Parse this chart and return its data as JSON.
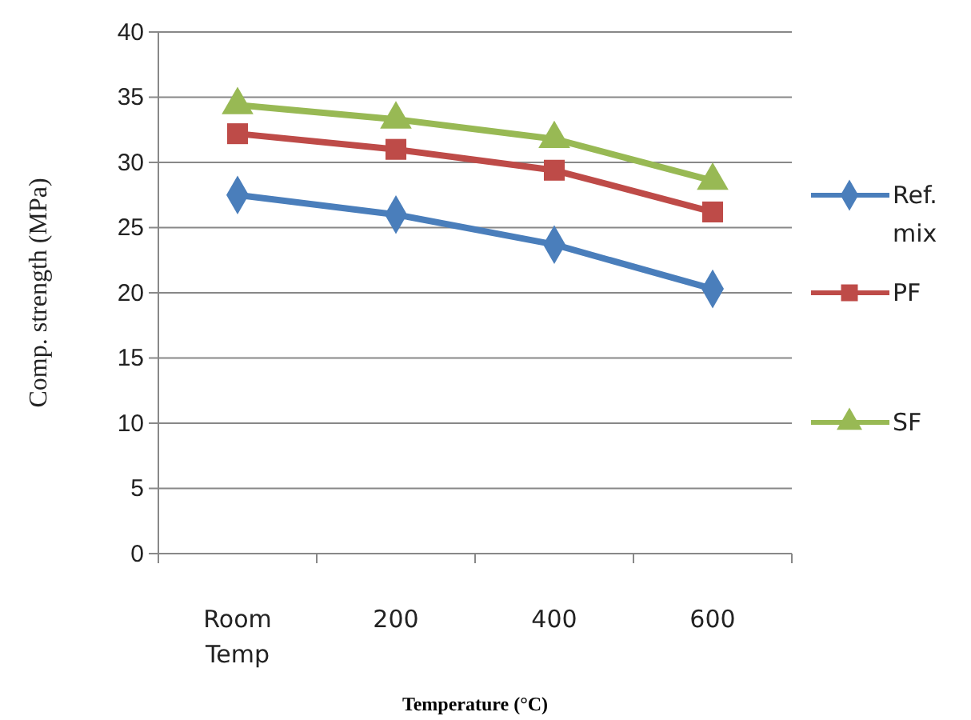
{
  "chart_data": {
    "type": "line",
    "xlabel": "Temperature (°C)",
    "ylabel": "Comp. strength (MPa)",
    "categories": [
      "Room Temp",
      "200",
      "400",
      "600"
    ],
    "series": [
      {
        "name": "Ref. mix",
        "color": "#4a7ebb",
        "marker": "diamond",
        "values": [
          27.5,
          26,
          23.7,
          20.3
        ]
      },
      {
        "name": "PF",
        "color": "#be4b48",
        "marker": "square",
        "values": [
          32.2,
          31,
          29.4,
          26.2
        ]
      },
      {
        "name": "SF",
        "color": "#98b954",
        "marker": "triangle",
        "values": [
          34.4,
          33.3,
          31.8,
          28.6
        ]
      }
    ],
    "ylim": [
      0,
      40
    ],
    "yticks": [
      0,
      5,
      10,
      15,
      20,
      25,
      30,
      35,
      40
    ],
    "grid": "y",
    "legend": "right"
  }
}
